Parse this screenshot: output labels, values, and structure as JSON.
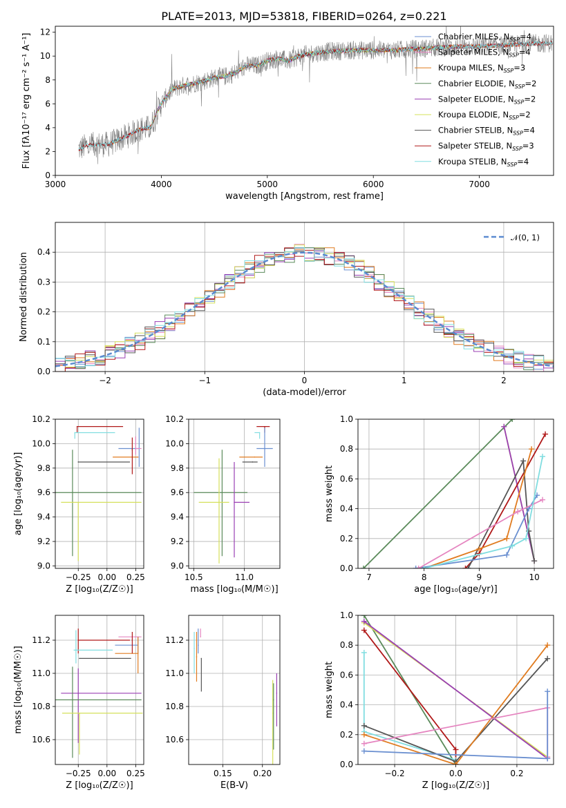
{
  "figure": {
    "title": "PLATE=2013, MJD=53818, FIBERID=0264, z=0.221"
  },
  "colors": {
    "chabrier_miles": "#6a8fd0",
    "salpeter_miles": "#e585c0",
    "kroupa_miles": "#e07b1f",
    "chabrier_elodie": "#5a8a5a",
    "salpeter_elodie": "#9a3fb3",
    "kroupa_elodie": "#d5e05a",
    "chabrier_stelib": "#555555",
    "salpeter_stelib": "#b01818",
    "kroupa_stelib": "#80dde0",
    "spectrum": "#808080",
    "normal": "#5a8ad0"
  },
  "legend_main": [
    {
      "text": "Chabrier MILES, N",
      "sub": "SSP",
      "tail": "=4",
      "color": "chabrier_miles"
    },
    {
      "text": "Salpeter MILES, N",
      "sub": "SSP",
      "tail": "=4",
      "color": "salpeter_miles"
    },
    {
      "text": "Kroupa MILES, N",
      "sub": "SSP",
      "tail": "=3",
      "color": "kroupa_miles"
    },
    {
      "text": "Chabrier ELODIE, N",
      "sub": "SSP",
      "tail": "=2",
      "color": "chabrier_elodie"
    },
    {
      "text": "Salpeter ELODIE, N",
      "sub": "SSP",
      "tail": "=2",
      "color": "salpeter_elodie"
    },
    {
      "text": "Kroupa ELODIE, N",
      "sub": "SSP",
      "tail": "=2",
      "color": "kroupa_elodie"
    },
    {
      "text": "Chabrier STELIB, N",
      "sub": "SSP",
      "tail": "=4",
      "color": "chabrier_stelib"
    },
    {
      "text": "Salpeter STELIB, N",
      "sub": "SSP",
      "tail": "=3",
      "color": "salpeter_stelib"
    },
    {
      "text": "Kroupa STELIB, N",
      "sub": "SSP",
      "tail": "=4",
      "color": "kroupa_stelib"
    }
  ],
  "legend_hist": {
    "text": "𝒩(0, 1)"
  },
  "chart_data": [
    {
      "id": "spectrum",
      "type": "line",
      "xlabel": "wavelength [Angstrom, rest frame]",
      "ylabel": "Flux [fλ10⁻¹⁷ erg cm⁻² s⁻¹ A⁻¹]",
      "xlim": [
        3000,
        7700
      ],
      "ylim": [
        0,
        12.5
      ],
      "xticks": [
        3000,
        4000,
        5000,
        6000,
        7000
      ],
      "yticks": [
        0,
        2,
        4,
        6,
        8,
        10,
        12
      ],
      "grid": false,
      "legend": "upper-right",
      "model_knots": {
        "x": [
          3220,
          3300,
          3400,
          3500,
          3600,
          3700,
          3800,
          3900,
          3950,
          4000,
          4100,
          4200,
          4300,
          4400,
          4500,
          4600,
          4700,
          4800,
          4900,
          5000,
          5100,
          5200,
          5300,
          5400,
          5600,
          5800,
          6000,
          6200,
          6400,
          6600,
          6800,
          7000,
          7200,
          7400,
          7690
        ],
        "y": [
          2.2,
          2.5,
          2.6,
          2.6,
          3.0,
          3.4,
          3.9,
          4.0,
          5.2,
          6.0,
          7.2,
          7.5,
          7.7,
          7.9,
          8.2,
          8.3,
          8.6,
          9.2,
          9.2,
          9.6,
          9.8,
          9.6,
          10.0,
          10.2,
          10.4,
          10.5,
          10.5,
          10.5,
          10.6,
          10.7,
          10.8,
          10.8,
          10.9,
          11.0,
          11.1
        ]
      }
    },
    {
      "id": "residuals",
      "type": "bar",
      "xlabel": "(data-model)/error",
      "ylabel": "Normed distribution",
      "xlim": [
        -2.5,
        2.5
      ],
      "ylim": [
        0,
        0.5
      ],
      "xticks": [
        -2,
        -1,
        0,
        1,
        2
      ],
      "yticks": [
        0.0,
        0.1,
        0.2,
        0.3,
        0.4
      ],
      "grid": true,
      "legend": "upper-right",
      "bin_width": 0.1
    },
    {
      "id": "age_vs_Z",
      "type": "scatter",
      "xlabel": "Z [log₁₀(Z/Z☉)]",
      "ylabel": "age  [log₁₀(age/yr)]",
      "xlim": [
        -0.45,
        0.32
      ],
      "ylim": [
        8.98,
        10.2
      ],
      "xticks": [
        -0.25,
        0.0,
        0.25
      ],
      "yticks": [
        9.0,
        9.2,
        9.4,
        9.6,
        9.8,
        10.0,
        10.2
      ],
      "grid": true,
      "points": [
        {
          "s": "salpeter_stelib",
          "x": -0.26,
          "xm": 0.0,
          "xp": 0.4,
          "y": 10.14,
          "ym": 0.05,
          "yp": 0.0
        },
        {
          "s": "kroupa_stelib",
          "x": -0.28,
          "xm": 0.0,
          "xp": 0.35,
          "y": 10.09,
          "ym": 0.05,
          "yp": 0.0
        },
        {
          "s": "chabrier_miles",
          "x": 0.28,
          "xm": 0.18,
          "xp": 0.0,
          "y": 9.96,
          "ym": 0.15,
          "yp": 0.17
        },
        {
          "s": "salpeter_miles",
          "x": 0.25,
          "xm": 0.0,
          "xp": 0.05,
          "y": 9.96,
          "ym": 0.05,
          "yp": 0.1
        },
        {
          "s": "kroupa_miles",
          "x": 0.27,
          "xm": 0.22,
          "xp": 0.0,
          "y": 9.89,
          "ym": 0.0,
          "yp": 0.0
        },
        {
          "s": "chabrier_stelib",
          "x": -0.25,
          "xm": 0.0,
          "xp": 0.45,
          "y": 9.85,
          "ym": 0.0,
          "yp": 0.0
        },
        {
          "s": "chabrier_elodie",
          "x": -0.3,
          "xm": 0.15,
          "xp": 0.6,
          "y": 9.6,
          "ym": 0.52,
          "yp": 0.35
        },
        {
          "s": "kroupa_elodie",
          "x": -0.25,
          "xm": 0.15,
          "xp": 0.55,
          "y": 9.52,
          "ym": 0.48,
          "yp": 0.0
        },
        {
          "s": "salpeter_stelib",
          "x": 0.22,
          "xm": 0.0,
          "xp": 0.0,
          "y": 9.95,
          "ym": 0.2,
          "yp": 0.1
        }
      ]
    },
    {
      "id": "age_vs_mass",
      "type": "scatter",
      "xlabel": "mass [log₁₀(M/M☉)]",
      "ylabel": "",
      "xlim": [
        10.45,
        11.35
      ],
      "ylim": [
        8.98,
        10.2
      ],
      "xticks": [
        10.5,
        11.0
      ],
      "yticks": [
        9.0,
        9.2,
        9.4,
        9.6,
        9.8,
        10.0,
        10.2
      ],
      "grid": true,
      "points": [
        {
          "s": "salpeter_stelib",
          "x": 11.2,
          "xm": 0.08,
          "xp": 0.05,
          "y": 10.14,
          "ym": 0.05,
          "yp": 0.0
        },
        {
          "s": "kroupa_stelib",
          "x": 11.15,
          "xm": 0.05,
          "xp": 0.0,
          "y": 10.09,
          "ym": 0.05,
          "yp": 0.0
        },
        {
          "s": "chabrier_miles",
          "x": 11.2,
          "xm": 0.08,
          "xp": 0.08,
          "y": 9.96,
          "ym": 0.15,
          "yp": 0.17
        },
        {
          "s": "kroupa_miles",
          "x": 11.1,
          "xm": 0.15,
          "xp": 0.08,
          "y": 9.89,
          "ym": 0.0,
          "yp": 0.0
        },
        {
          "s": "chabrier_stelib",
          "x": 11.08,
          "xm": 0.1,
          "xp": 0.05,
          "y": 9.85,
          "ym": 0.0,
          "yp": 0.0
        },
        {
          "s": "chabrier_elodie",
          "x": 10.78,
          "xm": 0.28,
          "xp": 0.25,
          "y": 9.6,
          "ym": 0.52,
          "yp": 0.35
        },
        {
          "s": "salpeter_elodie",
          "x": 10.9,
          "xm": 0.0,
          "xp": 0.15,
          "y": 9.52,
          "ym": 0.45,
          "yp": 0.33
        },
        {
          "s": "kroupa_elodie",
          "x": 10.75,
          "xm": 0.2,
          "xp": 0.1,
          "y": 9.52,
          "ym": 0.5,
          "yp": 0.36
        }
      ]
    },
    {
      "id": "weight_vs_age",
      "type": "line",
      "xlabel": "age  [log₁₀(age/yr)]",
      "ylabel": "mass weight",
      "xlim": [
        6.8,
        10.35
      ],
      "ylim": [
        0,
        1.0
      ],
      "xticks": [
        7,
        8,
        9,
        10
      ],
      "yticks": [
        0.0,
        0.2,
        0.4,
        0.6,
        0.8,
        1.0
      ],
      "grid": true,
      "series": [
        {
          "s": "chabrier_elodie",
          "x": [
            6.9,
            9.6
          ],
          "y": [
            0.0,
            1.0
          ]
        },
        {
          "s": "kroupa_elodie",
          "x": [
            9.45,
            10.0
          ],
          "y": [
            0.95,
            0.05
          ]
        },
        {
          "s": "salpeter_elodie",
          "x": [
            9.45,
            10.0
          ],
          "y": [
            0.95,
            0.05
          ]
        },
        {
          "s": "salpeter_stelib",
          "x": [
            8.75,
            9.0,
            10.2
          ],
          "y": [
            0.0,
            0.1,
            0.9
          ]
        },
        {
          "s": "chabrier_stelib",
          "x": [
            8.8,
            9.8,
            9.9,
            10.0
          ],
          "y": [
            0.0,
            0.72,
            0.25,
            0.05
          ]
        },
        {
          "s": "kroupa_miles",
          "x": [
            8.0,
            9.0,
            9.5,
            9.95
          ],
          "y": [
            0.0,
            0.13,
            0.2,
            0.8
          ]
        },
        {
          "s": "chabrier_miles",
          "x": [
            7.85,
            9.5,
            9.9,
            10.05
          ],
          "y": [
            0.0,
            0.09,
            0.4,
            0.49
          ]
        },
        {
          "s": "salpeter_miles",
          "x": [
            7.9,
            9.7,
            10.15
          ],
          "y": [
            0.0,
            0.38,
            0.46
          ]
        },
        {
          "s": "kroupa_stelib",
          "x": [
            8.0,
            9.6,
            9.85,
            10.15
          ],
          "y": [
            0.0,
            0.15,
            0.2,
            0.75
          ]
        }
      ]
    },
    {
      "id": "mass_vs_Z",
      "type": "scatter",
      "xlabel": "Z [log₁₀(Z/Z☉)]",
      "ylabel": "mass [log₁₀(M/M☉)]",
      "xlim": [
        -0.45,
        0.32
      ],
      "ylim": [
        10.45,
        11.35
      ],
      "xticks": [
        -0.25,
        0.0,
        0.25
      ],
      "yticks": [
        10.6,
        10.8,
        11.0,
        11.2
      ],
      "grid": true,
      "points": [
        {
          "s": "salpeter_miles",
          "x": 0.25,
          "xm": 0.15,
          "xp": 0.05,
          "y": 11.22,
          "ym": 0.0,
          "yp": 0.0
        },
        {
          "s": "salpeter_stelib",
          "x": -0.25,
          "xm": 0.0,
          "xp": 0.45,
          "y": 11.2,
          "ym": 0.08,
          "yp": 0.07
        },
        {
          "s": "chabrier_miles",
          "x": 0.27,
          "xm": 0.2,
          "xp": 0.0,
          "y": 11.17,
          "ym": 0.05,
          "yp": 0.05
        },
        {
          "s": "kroupa_stelib",
          "x": -0.27,
          "xm": 0.02,
          "xp": 0.32,
          "y": 11.14,
          "ym": 0.08,
          "yp": 0.12
        },
        {
          "s": "kroupa_miles",
          "x": 0.27,
          "xm": 0.2,
          "xp": 0.0,
          "y": 11.12,
          "ym": 0.12,
          "yp": 0.1
        },
        {
          "s": "chabrier_stelib",
          "x": -0.24,
          "xm": 0.0,
          "xp": 0.45,
          "y": 11.09,
          "ym": 0.0,
          "yp": 0.0
        },
        {
          "s": "salpeter_elodie",
          "x": -0.25,
          "xm": 0.15,
          "xp": 0.55,
          "y": 10.88,
          "ym": 0.3,
          "yp": 0.15
        },
        {
          "s": "chabrier_elodie",
          "x": -0.3,
          "xm": 0.15,
          "xp": 0.6,
          "y": 10.84,
          "ym": 0.35,
          "yp": 0.2
        },
        {
          "s": "kroupa_elodie",
          "x": -0.24,
          "xm": 0.15,
          "xp": 0.55,
          "y": 10.76,
          "ym": 0.25,
          "yp": 0.0
        },
        {
          "s": "salpeter_stelib",
          "x": 0.22,
          "xm": 0.0,
          "xp": 0.0,
          "y": 11.2,
          "ym": 0.08,
          "yp": 0.05
        }
      ]
    },
    {
      "id": "mass_vs_ebv",
      "type": "scatter",
      "xlabel": "E(B-V)",
      "ylabel": "",
      "xlim": [
        0.107,
        0.222
      ],
      "ylim": [
        10.45,
        11.35
      ],
      "xticks": [
        0.15,
        0.2
      ],
      "yticks": [
        10.6,
        10.8,
        11.0,
        11.2
      ],
      "grid": true,
      "points": [
        {
          "s": "kroupa_stelib",
          "x": 0.114,
          "ym": 0.15,
          "yp": 0.1,
          "y": 11.15
        },
        {
          "s": "kroupa_miles",
          "x": 0.117,
          "ym": 0.15,
          "yp": 0.15,
          "y": 11.1
        },
        {
          "s": "chabrier_miles",
          "x": 0.119,
          "ym": 0.05,
          "yp": 0.1,
          "y": 11.17
        },
        {
          "s": "salpeter_miles",
          "x": 0.122,
          "ym": 0.0,
          "yp": 0.05,
          "y": 11.22
        },
        {
          "s": "chabrier_stelib",
          "x": 0.123,
          "ym": 0.2,
          "yp": 0.0,
          "y": 11.09
        },
        {
          "s": "kroupa_elodie",
          "x": 0.213,
          "ym": 0.45,
          "yp": 0.2,
          "y": 10.76
        },
        {
          "s": "chabrier_elodie",
          "x": 0.214,
          "ym": 0.3,
          "yp": 0.1,
          "y": 10.84
        },
        {
          "s": "salpeter_elodie",
          "x": 0.218,
          "ym": 0.2,
          "yp": 0.12,
          "y": 10.88
        }
      ]
    },
    {
      "id": "weight_vs_Z",
      "type": "line",
      "xlabel": "Z [log₁₀(Z/Z☉)]",
      "ylabel": "mass weight",
      "xlim": [
        -0.32,
        0.32
      ],
      "ylim": [
        0,
        1.0
      ],
      "xticks": [
        -0.2,
        0.0,
        0.2
      ],
      "yticks": [
        0.0,
        0.2,
        0.4,
        0.6,
        0.8,
        1.0
      ],
      "grid": true,
      "series": [
        {
          "s": "chabrier_elodie",
          "x": [
            -0.3,
            0.0
          ],
          "y": [
            1.0,
            0.0
          ]
        },
        {
          "s": "kroupa_elodie",
          "x": [
            -0.3,
            0.3
          ],
          "y": [
            0.95,
            0.05
          ]
        },
        {
          "s": "salpeter_elodie",
          "x": [
            -0.3,
            0.3
          ],
          "y": [
            0.96,
            0.04
          ]
        },
        {
          "s": "salpeter_stelib",
          "x": [
            -0.3,
            0.0,
            0.0
          ],
          "y": [
            0.9,
            0.1,
            0.0
          ]
        },
        {
          "s": "kroupa_stelib",
          "x": [
            -0.3,
            -0.3,
            0.0
          ],
          "y": [
            0.75,
            0.22,
            0.03
          ]
        },
        {
          "s": "chabrier_stelib",
          "x": [
            -0.3,
            0.0,
            0.3
          ],
          "y": [
            0.26,
            0.02,
            0.71
          ]
        },
        {
          "s": "kroupa_miles",
          "x": [
            -0.3,
            0.0,
            0.3
          ],
          "y": [
            0.2,
            0.0,
            0.8
          ]
        },
        {
          "s": "salpeter_miles",
          "x": [
            -0.3,
            0.3,
            0.3
          ],
          "y": [
            0.14,
            0.38,
            0.05
          ]
        },
        {
          "s": "chabrier_miles",
          "x": [
            -0.3,
            0.3,
            0.3
          ],
          "y": [
            0.09,
            0.04,
            0.49
          ]
        }
      ]
    }
  ]
}
